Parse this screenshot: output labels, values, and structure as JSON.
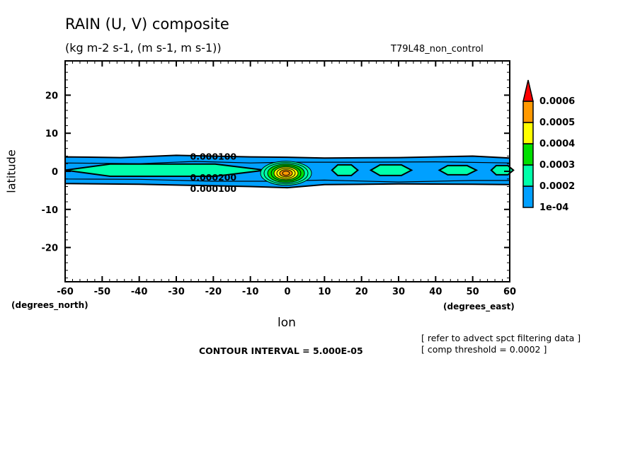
{
  "chart_data": {
    "type": "contour",
    "title": "RAIN (U, V) composite",
    "subtitle": "(kg m-2 s-1, (m s-1, m s-1))",
    "run_name": "T79L48_non_control",
    "xlabel": "lon",
    "ylabel": "latitude",
    "x_units": "(degrees_east)",
    "y_units": "(degrees_north)",
    "xlim": [
      -60,
      60
    ],
    "ylim": [
      -29,
      29
    ],
    "x_ticks": [
      -60,
      -50,
      -40,
      -30,
      -20,
      -10,
      0,
      10,
      20,
      30,
      40,
      50,
      60
    ],
    "y_ticks": [
      20,
      10,
      0,
      -10,
      -20
    ],
    "colorbar": {
      "levels": [
        "1e-04",
        "0.0002",
        "0.0003",
        "0.0004",
        "0.0005",
        "0.0006"
      ],
      "colors": [
        "#00a0ff",
        "#00ffaa",
        "#00e000",
        "#ffff00",
        "#ff9900",
        "#ff0000"
      ],
      "extend": "max"
    },
    "contour_labels": [
      {
        "text": "0.000100",
        "lon": -20,
        "lat": 4
      },
      {
        "text": "0.000200",
        "lon": -20,
        "lat": -1.5
      },
      {
        "text": "0.000100",
        "lon": -20,
        "lat": -4.5
      }
    ],
    "bands": {
      "outer_1e4": {
        "north": [
          [
            -60,
            3.8
          ],
          [
            -45,
            3.6
          ],
          [
            -30,
            4.2
          ],
          [
            -10,
            3.8
          ],
          [
            0,
            3.7
          ],
          [
            10,
            3.5
          ],
          [
            30,
            3.6
          ],
          [
            50,
            4.0
          ],
          [
            60,
            3.5
          ]
        ],
        "south": [
          [
            -60,
            -3.2
          ],
          [
            -40,
            -3.4
          ],
          [
            -20,
            -3.8
          ],
          [
            -10,
            -4
          ],
          [
            0,
            -4.3
          ],
          [
            10,
            -3.5
          ],
          [
            30,
            -3.3
          ],
          [
            50,
            -3.4
          ],
          [
            60,
            -3.5
          ]
        ]
      },
      "inner_band": {
        "north": [
          [
            -60,
            2.2
          ],
          [
            -40,
            2.0
          ],
          [
            -25,
            2.6
          ],
          [
            -10,
            2.2
          ],
          [
            0,
            2.4
          ],
          [
            20,
            2.4
          ],
          [
            40,
            2.5
          ],
          [
            60,
            2.2
          ]
        ],
        "south": [
          [
            -60,
            -2.0
          ],
          [
            -40,
            -2.1
          ],
          [
            -20,
            -2.6
          ],
          [
            -5,
            -2.6
          ],
          [
            10,
            -2.3
          ],
          [
            30,
            -2.8
          ],
          [
            50,
            -2.4
          ],
          [
            60,
            -2.4
          ]
        ]
      }
    },
    "cells_0002": [
      {
        "lon": -33,
        "lat": 0.3,
        "hw": 27,
        "hh": 1.6
      },
      {
        "lon": 15.5,
        "lat": 0.3,
        "hw": 3.5,
        "hh": 1.4
      },
      {
        "lon": 28,
        "lat": 0.3,
        "hw": 5.5,
        "hh": 1.4
      },
      {
        "lon": 46,
        "lat": 0.3,
        "hw": 5,
        "hh": 1.2
      },
      {
        "lon": 58,
        "lat": 0.3,
        "hw": 3,
        "hh": 1.2
      }
    ],
    "peak": {
      "lon": 0,
      "lat": -0.5,
      "max_level": "0.0005-0.0006"
    },
    "annotations": [
      "CONTOUR INTERVAL = 5.000E-05",
      "[ refer to advect spct filtering data ]",
      "[ comp threshold = 0.0002 ]"
    ]
  }
}
